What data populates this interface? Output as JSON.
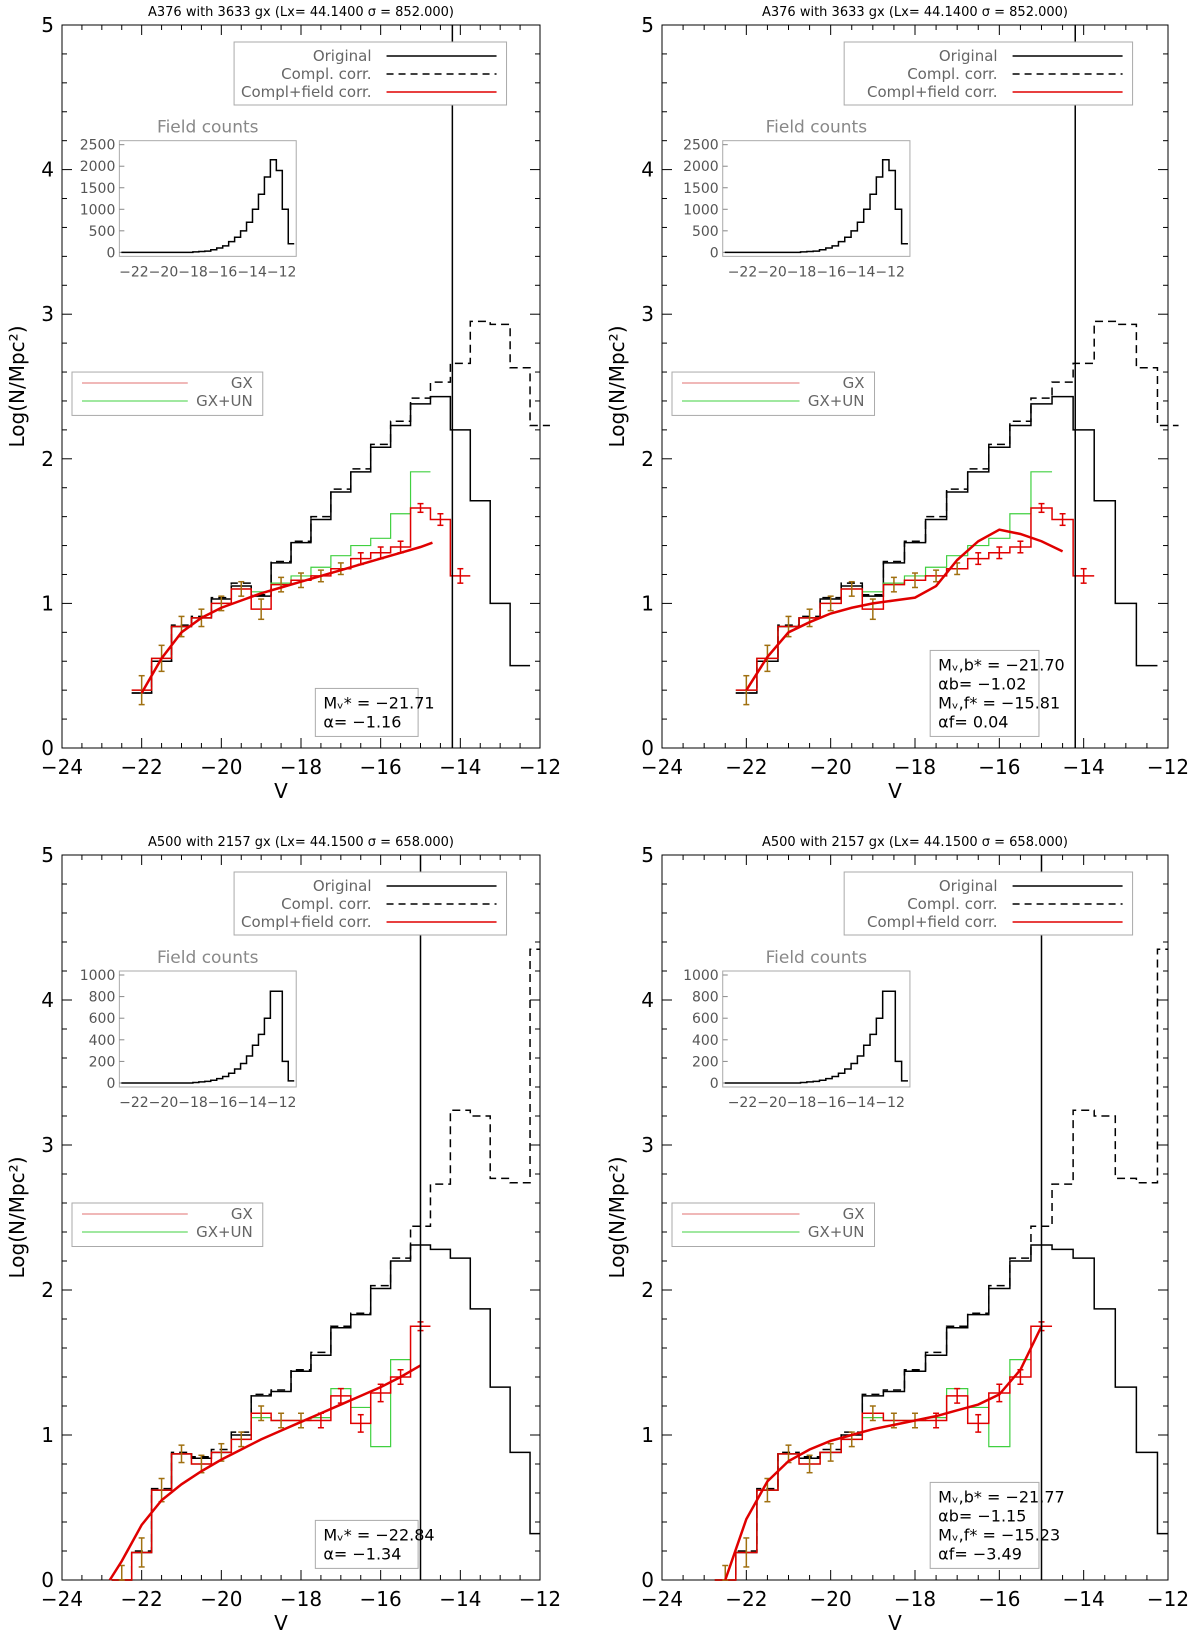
{
  "chart_data": [
    {
      "type": "step",
      "title": "A376     with  3633 gx (Lx= 44.1400 σ = 852.000)",
      "xlabel": "V",
      "ylabel": "Log(N/Mpc²)",
      "xlim": [
        -24,
        -12
      ],
      "ylim": [
        0,
        5
      ],
      "xticks": [
        "−24",
        "−22",
        "−20",
        "−18",
        "−16",
        "−14",
        "−12"
      ],
      "yticks": [
        "0",
        "1",
        "2",
        "3",
        "4",
        "5"
      ],
      "legend": [
        "Original",
        "Compl. corr.",
        "Compl+field corr."
      ],
      "legend2": [
        "GX",
        "GX+UN"
      ],
      "colors": {
        "original": "#000000",
        "completeness": "#000000",
        "field": "#e00000",
        "gx": "#e07070",
        "gxun": "#40d040",
        "errorbar": "#a07010"
      },
      "vline": -14.2,
      "bins_x": [
        -22.25,
        -21.75,
        -21.25,
        -20.75,
        -20.25,
        -19.75,
        -19.25,
        -18.75,
        -18.25,
        -17.75,
        -17.25,
        -16.75,
        -16.25,
        -15.75,
        -15.25,
        -14.75,
        -14.25,
        -13.75,
        -13.25,
        -12.75,
        -12.25
      ],
      "original": [
        0.38,
        0.6,
        0.84,
        0.9,
        1.03,
        1.12,
        1.05,
        1.28,
        1.42,
        1.58,
        1.77,
        1.91,
        2.08,
        2.23,
        2.38,
        2.43,
        2.2,
        1.71,
        1.0,
        0.57
      ],
      "completeness": [
        0.38,
        0.6,
        0.85,
        0.91,
        1.04,
        1.14,
        1.06,
        1.29,
        1.43,
        1.6,
        1.79,
        1.93,
        2.1,
        2.26,
        2.42,
        2.53,
        2.66,
        2.95,
        2.93,
        2.63,
        2.23
      ],
      "gxun": [
        0.4,
        0.62,
        0.84,
        0.9,
        1.0,
        1.1,
        1.08,
        1.14,
        1.19,
        1.25,
        1.33,
        1.4,
        1.45,
        1.62,
        1.91
      ],
      "field": [
        0.4,
        0.62,
        0.84,
        0.9,
        1.0,
        1.1,
        0.96,
        1.13,
        1.16,
        1.19,
        1.24,
        1.31,
        1.35,
        1.39,
        1.66,
        1.58,
        1.19
      ],
      "errors": [
        0.1,
        0.09,
        0.07,
        0.06,
        0.05,
        0.05,
        0.07,
        0.05,
        0.05,
        0.04,
        0.04,
        0.04,
        0.04,
        0.04,
        0.03,
        0.04,
        0.05
      ],
      "fit_x": [
        -22.0,
        -21.5,
        -21.0,
        -20.5,
        -20.0,
        -19.5,
        -19.0,
        -18.5,
        -18.0,
        -17.5,
        -17.0,
        -16.5,
        -16.0,
        -15.5,
        -15.0,
        -14.7
      ],
      "fit_y": [
        0.38,
        0.62,
        0.8,
        0.9,
        0.97,
        1.02,
        1.07,
        1.11,
        1.15,
        1.19,
        1.23,
        1.27,
        1.31,
        1.35,
        1.39,
        1.42
      ],
      "inset": {
        "title": "Field counts",
        "yticks": [
          "2500",
          "2000",
          "1500",
          "1000",
          "500",
          "0"
        ],
        "xticks": "−22−20−18−16−14−12",
        "ymax": 2500,
        "counts": [
          0,
          0,
          0,
          0,
          0,
          0,
          0,
          0,
          0,
          0,
          0,
          0,
          10,
          20,
          30,
          60,
          100,
          150,
          250,
          350,
          500,
          700,
          1000,
          1350,
          1750,
          2150,
          1900,
          1000,
          200
        ]
      },
      "params": [
        "Mᵥ* = −21.71",
        "α= −1.16"
      ]
    },
    {
      "type": "step",
      "title": "A376     with  3633 gx (Lx= 44.1400 σ = 852.000)",
      "xlabel": "V",
      "ylabel": "Log(N/Mpc²)",
      "xlim": [
        -24,
        -12
      ],
      "ylim": [
        0,
        5
      ],
      "xticks": [
        "−24",
        "−22",
        "−20",
        "−18",
        "−16",
        "−14",
        "−12"
      ],
      "yticks": [
        "0",
        "1",
        "2",
        "3",
        "4",
        "5"
      ],
      "legend": [
        "Original",
        "Compl. corr.",
        "Compl+field corr."
      ],
      "legend2": [
        "GX",
        "GX+UN"
      ],
      "colors": {
        "original": "#000000",
        "completeness": "#000000",
        "field": "#e00000",
        "gx": "#e07070",
        "gxun": "#40d040",
        "errorbar": "#a07010"
      },
      "vline": -14.2,
      "bins_x": [
        -22.25,
        -21.75,
        -21.25,
        -20.75,
        -20.25,
        -19.75,
        -19.25,
        -18.75,
        -18.25,
        -17.75,
        -17.25,
        -16.75,
        -16.25,
        -15.75,
        -15.25,
        -14.75,
        -14.25,
        -13.75,
        -13.25,
        -12.75,
        -12.25
      ],
      "original": [
        0.38,
        0.6,
        0.84,
        0.9,
        1.03,
        1.12,
        1.05,
        1.28,
        1.42,
        1.58,
        1.77,
        1.91,
        2.08,
        2.23,
        2.38,
        2.43,
        2.2,
        1.71,
        1.0,
        0.57
      ],
      "completeness": [
        0.38,
        0.6,
        0.85,
        0.91,
        1.04,
        1.14,
        1.06,
        1.29,
        1.43,
        1.6,
        1.79,
        1.93,
        2.1,
        2.26,
        2.42,
        2.53,
        2.66,
        2.95,
        2.93,
        2.63,
        2.23
      ],
      "gxun": [
        0.4,
        0.62,
        0.84,
        0.9,
        1.0,
        1.1,
        1.08,
        1.14,
        1.19,
        1.25,
        1.33,
        1.4,
        1.45,
        1.62,
        1.91
      ],
      "field": [
        0.4,
        0.62,
        0.84,
        0.9,
        1.0,
        1.1,
        0.96,
        1.13,
        1.16,
        1.19,
        1.24,
        1.31,
        1.35,
        1.39,
        1.66,
        1.58,
        1.19
      ],
      "errors": [
        0.1,
        0.09,
        0.07,
        0.06,
        0.05,
        0.05,
        0.07,
        0.05,
        0.05,
        0.04,
        0.04,
        0.04,
        0.04,
        0.04,
        0.03,
        0.04,
        0.05
      ],
      "fit_x": [
        -22.0,
        -21.5,
        -21.0,
        -20.5,
        -20.0,
        -19.5,
        -19.0,
        -18.5,
        -18.0,
        -17.5,
        -17.0,
        -16.5,
        -16.0,
        -15.5,
        -15.0,
        -14.5
      ],
      "fit_y": [
        0.4,
        0.63,
        0.8,
        0.87,
        0.93,
        0.97,
        1.0,
        1.02,
        1.04,
        1.12,
        1.3,
        1.43,
        1.51,
        1.48,
        1.43,
        1.36
      ],
      "inset": {
        "title": "Field counts",
        "yticks": [
          "2500",
          "2000",
          "1500",
          "1000",
          "500",
          "0"
        ],
        "xticks": "−22−20−18−16−14−12",
        "ymax": 2500,
        "counts": [
          0,
          0,
          0,
          0,
          0,
          0,
          0,
          0,
          0,
          0,
          0,
          0,
          10,
          20,
          30,
          60,
          100,
          150,
          250,
          350,
          500,
          700,
          1000,
          1350,
          1750,
          2150,
          1900,
          1000,
          200
        ]
      },
      "params": [
        "Mᵥ,b* = −21.70",
        "αb= −1.02",
        "Mᵥ,f* = −15.81",
        "αf= 0.04"
      ]
    },
    {
      "type": "step",
      "title": "A500     with  2157 gx (Lx= 44.1500 σ = 658.000)",
      "xlabel": "V",
      "ylabel": "Log(N/Mpc²)",
      "xlim": [
        -24,
        -12
      ],
      "ylim": [
        0,
        5
      ],
      "xticks": [
        "−24",
        "−22",
        "−20",
        "−18",
        "−16",
        "−14",
        "−12"
      ],
      "yticks": [
        "0",
        "1",
        "2",
        "3",
        "4",
        "5"
      ],
      "legend": [
        "Original",
        "Compl. corr.",
        "Compl+field corr."
      ],
      "legend2": [
        "GX",
        "GX+UN"
      ],
      "colors": {
        "original": "#000000",
        "completeness": "#000000",
        "field": "#e00000",
        "gx": "#e07070",
        "gxun": "#40d040",
        "errorbar": "#a07010"
      },
      "vline": -15.0,
      "bins_x": [
        -22.75,
        -22.25,
        -21.75,
        -21.25,
        -20.75,
        -20.25,
        -19.75,
        -19.25,
        -18.75,
        -18.25,
        -17.75,
        -17.25,
        -16.75,
        -16.25,
        -15.75,
        -15.25,
        -14.75,
        -14.25,
        -13.75,
        -13.25,
        -12.75,
        -12.25,
        -12.0
      ],
      "original": [
        0.0,
        0.19,
        0.62,
        0.87,
        0.84,
        0.88,
        1.0,
        1.27,
        1.3,
        1.44,
        1.55,
        1.74,
        1.83,
        2.01,
        2.2,
        2.31,
        2.28,
        2.22,
        1.87,
        1.33,
        0.88,
        0.32
      ],
      "completeness": [
        0.0,
        0.2,
        0.63,
        0.88,
        0.85,
        0.9,
        1.02,
        1.28,
        1.31,
        1.45,
        1.57,
        1.75,
        1.84,
        2.03,
        2.22,
        2.44,
        2.73,
        3.24,
        3.2,
        2.77,
        2.74,
        4.35
      ],
      "gxun": [
        0.0,
        0.19,
        0.62,
        0.87,
        0.8,
        0.88,
        0.97,
        1.12,
        1.1,
        1.1,
        1.12,
        1.32,
        1.19,
        0.92,
        1.52
      ],
      "field": [
        0.0,
        0.19,
        0.62,
        0.87,
        0.8,
        0.88,
        0.97,
        1.15,
        1.1,
        1.1,
        1.1,
        1.27,
        1.08,
        1.29,
        1.4,
        1.75
      ],
      "errors": [
        0.1,
        0.1,
        0.08,
        0.06,
        0.06,
        0.06,
        0.05,
        0.05,
        0.05,
        0.05,
        0.05,
        0.05,
        0.06,
        0.06,
        0.05,
        0.03
      ],
      "fit_x": [
        -22.8,
        -22.5,
        -22.0,
        -21.5,
        -21.0,
        -20.5,
        -20.0,
        -19.5,
        -19.0,
        -18.5,
        -18.0,
        -17.5,
        -17.0,
        -16.5,
        -16.0,
        -15.5,
        -15.0
      ],
      "fit_y": [
        0.0,
        0.13,
        0.38,
        0.55,
        0.66,
        0.75,
        0.83,
        0.9,
        0.97,
        1.03,
        1.09,
        1.15,
        1.21,
        1.27,
        1.33,
        1.4,
        1.48
      ],
      "inset": {
        "title": "Field counts",
        "yticks": [
          "1000",
          "800",
          "600",
          "400",
          "200",
          "0"
        ],
        "xticks": "−22−20−18−16−14−12",
        "ymax": 1000,
        "counts": [
          0,
          0,
          0,
          0,
          0,
          0,
          0,
          0,
          0,
          0,
          0,
          0,
          5,
          10,
          15,
          25,
          40,
          60,
          90,
          130,
          180,
          250,
          350,
          450,
          600,
          850,
          850,
          200,
          20
        ]
      },
      "params": [
        "Mᵥ* = −22.84",
        "α= −1.34"
      ]
    },
    {
      "type": "step",
      "title": "A500     with  2157 gx (Lx= 44.1500 σ = 658.000)",
      "xlabel": "V",
      "ylabel": "Log(N/Mpc²)",
      "xlim": [
        -24,
        -12
      ],
      "ylim": [
        0,
        5
      ],
      "xticks": [
        "−24",
        "−22",
        "−20",
        "−18",
        "−16",
        "−14",
        "−12"
      ],
      "yticks": [
        "0",
        "1",
        "2",
        "3",
        "4",
        "5"
      ],
      "legend": [
        "Original",
        "Compl. corr.",
        "Compl+field corr."
      ],
      "legend2": [
        "GX",
        "GX+UN"
      ],
      "colors": {
        "original": "#000000",
        "completeness": "#000000",
        "field": "#e00000",
        "gx": "#e07070",
        "gxun": "#40d040",
        "errorbar": "#a07010"
      },
      "vline": -15.0,
      "bins_x": [
        -22.75,
        -22.25,
        -21.75,
        -21.25,
        -20.75,
        -20.25,
        -19.75,
        -19.25,
        -18.75,
        -18.25,
        -17.75,
        -17.25,
        -16.75,
        -16.25,
        -15.75,
        -15.25,
        -14.75,
        -14.25,
        -13.75,
        -13.25,
        -12.75,
        -12.25,
        -12.0
      ],
      "original": [
        0.0,
        0.19,
        0.62,
        0.87,
        0.84,
        0.88,
        1.0,
        1.27,
        1.3,
        1.44,
        1.55,
        1.74,
        1.83,
        2.01,
        2.2,
        2.31,
        2.28,
        2.22,
        1.87,
        1.33,
        0.88,
        0.32
      ],
      "completeness": [
        0.0,
        0.2,
        0.63,
        0.88,
        0.85,
        0.9,
        1.02,
        1.28,
        1.31,
        1.45,
        1.57,
        1.75,
        1.84,
        2.03,
        2.22,
        2.44,
        2.73,
        3.24,
        3.2,
        2.77,
        2.74,
        4.35
      ],
      "gxun": [
        0.0,
        0.19,
        0.62,
        0.87,
        0.8,
        0.88,
        0.97,
        1.12,
        1.1,
        1.1,
        1.12,
        1.32,
        1.19,
        0.92,
        1.52
      ],
      "field": [
        0.0,
        0.19,
        0.62,
        0.87,
        0.8,
        0.88,
        0.97,
        1.15,
        1.1,
        1.1,
        1.1,
        1.27,
        1.08,
        1.29,
        1.4,
        1.75
      ],
      "errors": [
        0.1,
        0.1,
        0.08,
        0.06,
        0.06,
        0.06,
        0.05,
        0.05,
        0.05,
        0.05,
        0.05,
        0.05,
        0.06,
        0.06,
        0.05,
        0.03
      ],
      "fit_x": [
        -22.5,
        -22.0,
        -21.5,
        -21.0,
        -20.5,
        -20.0,
        -19.5,
        -19.0,
        -18.5,
        -18.0,
        -17.5,
        -17.0,
        -16.5,
        -16.0,
        -15.5,
        -15.0
      ],
      "fit_y": [
        0.0,
        0.42,
        0.68,
        0.82,
        0.9,
        0.96,
        1.0,
        1.04,
        1.07,
        1.1,
        1.13,
        1.17,
        1.21,
        1.28,
        1.45,
        1.75
      ],
      "inset": {
        "title": "Field counts",
        "yticks": [
          "1000",
          "800",
          "600",
          "400",
          "200",
          "0"
        ],
        "xticks": "−22−20−18−16−14−12",
        "ymax": 1000,
        "counts": [
          0,
          0,
          0,
          0,
          0,
          0,
          0,
          0,
          0,
          0,
          0,
          0,
          5,
          10,
          15,
          25,
          40,
          60,
          90,
          130,
          180,
          250,
          350,
          450,
          600,
          850,
          850,
          200,
          20
        ]
      },
      "params": [
        "Mᵥ,b* = −21.77",
        "αb= −1.15",
        "Mᵥ,f* = −15.23",
        "αf= −3.49"
      ]
    }
  ]
}
